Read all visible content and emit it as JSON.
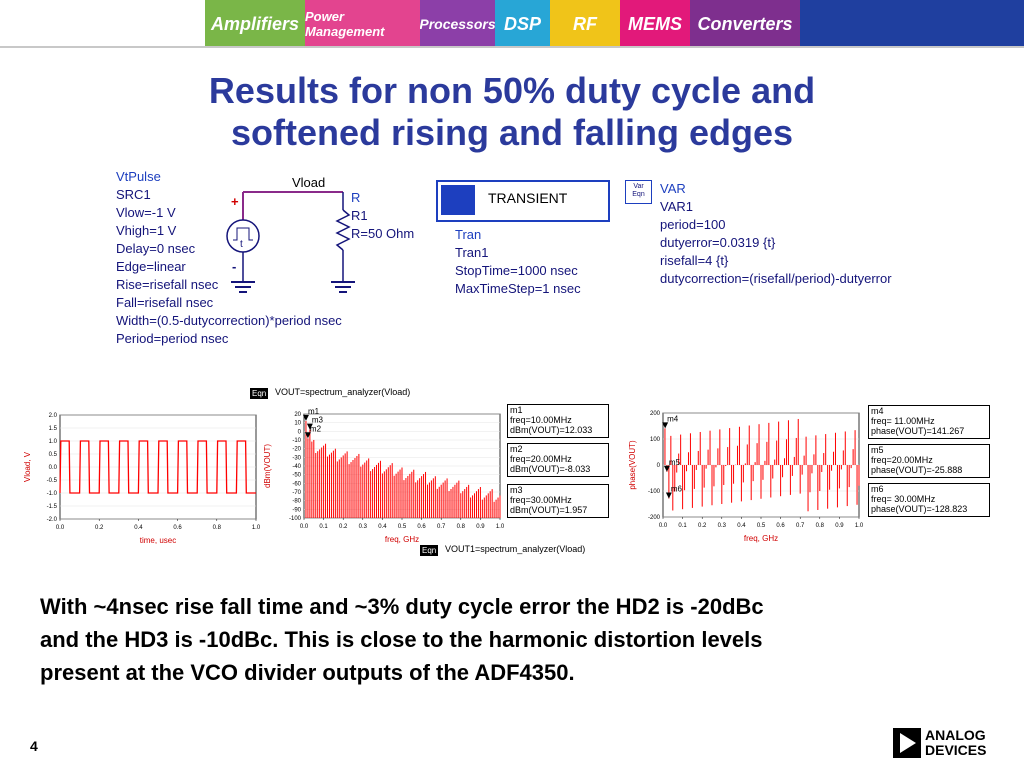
{
  "banner": {
    "tiles": [
      "Amplifiers",
      "Power Management",
      "Processors",
      "DSP",
      "RF",
      "MEMS",
      "Converters"
    ]
  },
  "title": {
    "line1": "Results for non 50% duty cycle and",
    "line2": "softened rising and falling edges"
  },
  "schematic": {
    "source_lines": [
      "VtPulse",
      "SRC1",
      "Vlow=-1 V",
      "Vhigh=1 V",
      "Delay=0 nsec",
      "Edge=linear",
      "Rise=risefall nsec",
      "Fall=risefall nsec",
      "Width=(0.5-dutycorrection)*period nsec",
      "Period=period nsec"
    ],
    "node_label": "Vload",
    "resistor_lines": [
      "R",
      "R1",
      "R=50 Ohm"
    ],
    "transient_label": "TRANSIENT",
    "tran_lines": [
      "Tran",
      "Tran1",
      "StopTime=1000 nsec",
      "MaxTimeStep=1 nsec"
    ],
    "var_icon": [
      "Var",
      "Eqn"
    ],
    "var_lines": [
      "VAR",
      "VAR1",
      "period=100",
      "dutyerror=0.0319 {t}",
      "risefall=4 {t}",
      "dutycorrection=(risefall/period)-dutyerror"
    ],
    "plus_sign": "+",
    "minus_sign": "-",
    "source_symbol": "t"
  },
  "equations": {
    "eqn_tag": "Eqn",
    "eqn1": "VOUT=spectrum_analyzer(Vload)",
    "eqn2": "VOUT1=spectrum_analyzer(Vload)"
  },
  "chart_data": [
    {
      "type": "line",
      "xlabel": "time, usec",
      "ylabel": "Vload, V",
      "xlim": [
        0.0,
        1.0
      ],
      "ylim": [
        -2.0,
        2.0
      ],
      "x_ticks": [
        "0.0",
        "0.2",
        "0.4",
        "0.6",
        "0.8",
        "1.0"
      ],
      "y_ticks": [
        "2.0",
        "1.5",
        "1.0",
        "0.5",
        "0.0",
        "-0.5",
        "-1.0",
        "-1.5",
        "-2.0"
      ],
      "period": 0.1,
      "high": 1.0,
      "low": -1.0,
      "high_fraction": 0.467,
      "color": "#ff0000"
    },
    {
      "type": "bar",
      "xlabel": "freq, GHz",
      "ylabel": "dBm(VOUT)",
      "xlim": [
        0.0,
        1.0
      ],
      "ylim": [
        -100,
        20
      ],
      "x_ticks": [
        "0.0",
        "0.1",
        "0.2",
        "0.3",
        "0.4",
        "0.5",
        "0.6",
        "0.7",
        "0.8",
        "0.9",
        "1.0"
      ],
      "y_ticks": [
        "20",
        "10",
        "0",
        "-10",
        "-20",
        "-30",
        "-40",
        "-50",
        "-60",
        "-70",
        "-80",
        "-90",
        "-100"
      ],
      "color": "#ff0000",
      "markers": [
        {
          "id": "m1",
          "freq": "freq=10.00MHz",
          "value": "dBm(VOUT)=12.033"
        },
        {
          "id": "m2",
          "freq": "freq=20.00MHz",
          "value": "dBm(VOUT)=-8.033"
        },
        {
          "id": "m3",
          "freq": "freq=30.00MHz",
          "value": "dBm(VOUT)=1.957"
        }
      ],
      "marker_points": [
        {
          "id": "m1",
          "x": 0.01,
          "y": 12.0
        },
        {
          "id": "m2",
          "x": 0.02,
          "y": -8.0
        },
        {
          "id": "m3",
          "x": 0.03,
          "y": 2.0
        }
      ]
    },
    {
      "type": "bar",
      "xlabel": "freq, GHz",
      "ylabel": "phase(VOUT)",
      "xlim": [
        0.0,
        1.0
      ],
      "ylim": [
        -200,
        200
      ],
      "x_ticks": [
        "0.0",
        "0.1",
        "0.2",
        "0.3",
        "0.4",
        "0.5",
        "0.6",
        "0.7",
        "0.8",
        "0.9",
        "1.0"
      ],
      "y_ticks": [
        "200",
        "100",
        "0",
        "-100",
        "-200"
      ],
      "color": "#ff0000",
      "markers": [
        {
          "id": "m4",
          "freq": "freq= 11.00MHz",
          "value": "phase(VOUT)=141.267"
        },
        {
          "id": "m5",
          "freq": "freq=20.00MHz",
          "value": "phase(VOUT)=-25.888"
        },
        {
          "id": "m6",
          "freq": "freq= 30.00MHz",
          "value": "phase(VOUT)=-128.823"
        }
      ],
      "marker_points": [
        {
          "id": "m4",
          "x": 0.011,
          "y": 141
        },
        {
          "id": "m5",
          "x": 0.02,
          "y": -26
        },
        {
          "id": "m6",
          "x": 0.03,
          "y": -129
        }
      ]
    }
  ],
  "body": {
    "line1": "With ~4nsec rise fall time and ~3% duty cycle error the HD2 is -20dBc",
    "line2": "and the HD3 is -10dBc. This is close to the harmonic distortion levels",
    "line3": "present at the VCO divider outputs of the ADF4350."
  },
  "footer": {
    "page_number": "4",
    "logo_line1": "ANALOG",
    "logo_line2": "DEVICES"
  }
}
